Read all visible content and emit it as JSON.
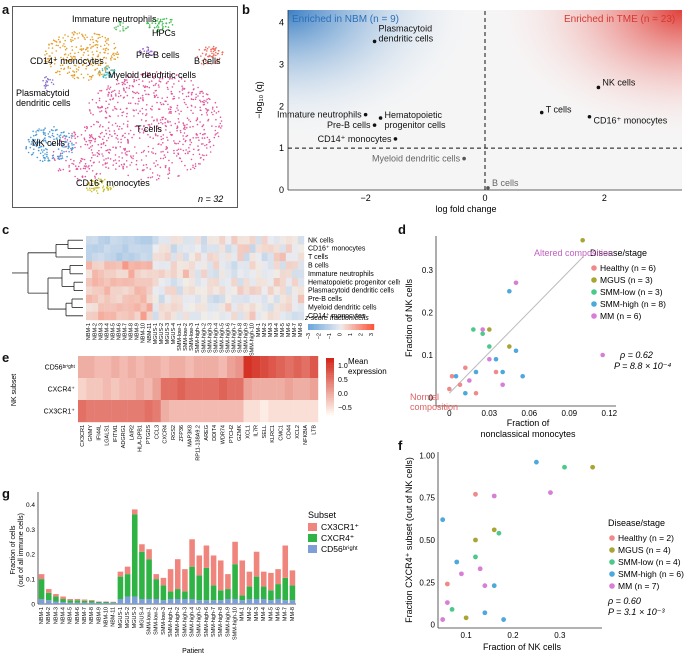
{
  "figure": {
    "panel_labels": {
      "a": "a",
      "b": "b",
      "c": "c",
      "d": "d",
      "e": "e",
      "f": "f",
      "g": "g"
    }
  },
  "panel_a": {
    "n_label": "n = 32",
    "cluster_labels": {
      "immature_neutrophils": "Immature neutrophils",
      "hpcs": "HPCs",
      "cd14_monocytes": "CD14⁺ monocytes",
      "pre_b_cells": "Pre-B cells",
      "b_cells": "B cells",
      "myeloid_dc": "Myeloid dendritic cells",
      "pdc_line1": "Plasmacytoid",
      "pdc_line2": "dendritic cells",
      "t_cells": "T cells",
      "nk_cells": "NK cells",
      "cd16_monocytes": "CD16⁺ monocytes"
    },
    "colors": {
      "t_cells": "#e2569c",
      "cd14_monocytes": "#e3a12c",
      "nk_cells": "#4a9ad8",
      "cd16_monocytes": "#c8c230",
      "b_cells": "#ef6b5e",
      "hpcs": "#3dbb4d",
      "immature_neutrophils": "#5fc26c",
      "pre_b_cells": "#9b6ad0",
      "myeloid_dc": "#36c0c8",
      "pdc": "#8a74cc"
    }
  },
  "panel_b": {
    "left_title": "Enriched in NBM (n = 9)",
    "right_title": "Enriched in TME (n = 23)",
    "left_color": "#3b7fc4",
    "right_color": "#e0403a",
    "xlabel": "log fold change",
    "ylabel": "−log₁₀ (q)",
    "xticks": [
      "−2",
      "0",
      "2"
    ],
    "yticks": [
      "0",
      "1",
      "2",
      "3",
      "4"
    ],
    "points": [
      {
        "label1": "Plasmacytoid",
        "label2": "dendritic cells",
        "x": -1.85,
        "y": 3.55
      },
      {
        "label1": "Immature neutrophils",
        "label2": "",
        "x": -2.0,
        "y": 1.8
      },
      {
        "label1": "Hematopoietic",
        "label2": "progenitor cells",
        "x": -1.75,
        "y": 1.72
      },
      {
        "label1": "Pre-B cells",
        "label2": "",
        "x": -1.85,
        "y": 1.55
      },
      {
        "label1": "CD14⁺ monocytes",
        "label2": "",
        "x": -1.5,
        "y": 1.22
      },
      {
        "label1": "Myeloid dendritic cells",
        "label2": "",
        "x": -0.35,
        "y": 0.75
      },
      {
        "label1": "B cells",
        "label2": "",
        "x": 0.05,
        "y": 0.05
      },
      {
        "label1": "NK cells",
        "label2": "",
        "x": 1.9,
        "y": 2.45
      },
      {
        "label1": "T cells",
        "label2": "",
        "x": 0.95,
        "y": 1.85
      },
      {
        "label1": "CD16⁺ monocytes",
        "label2": "",
        "x": 1.75,
        "y": 1.75
      }
    ]
  },
  "panel_c": {
    "rows": [
      "NK cells",
      "CD16⁺ monocytes",
      "T cells",
      "B cells",
      "Immature neutrophils",
      "Hematopoietic progenitor cells",
      "Plasmacytoid dendritic cells",
      "Pre-B cells",
      "Myeloid dendritic cells",
      "CD14⁺ monocytes"
    ],
    "columns": [
      "NBM-1",
      "NBM-2",
      "NBM-3",
      "NBM-4",
      "NBM-5",
      "NBM-6",
      "NBM-7",
      "NBM-8",
      "NBM-9",
      "NBM-10",
      "NBM-11",
      "MGUS-1",
      "MGUS-2",
      "MGUS-3",
      "MGUS-4",
      "SMM-low-1",
      "SMM-low-2",
      "SMM-low-3",
      "SMM-high-1",
      "SMM-high-2",
      "SMM-high-3",
      "SMM-high-4",
      "SMM-high-5",
      "SMM-high-6",
      "SMM-high-7",
      "SMM-high-8",
      "SMM-high-9",
      "SMM-high-10",
      "MM-1",
      "MM-2",
      "MM-3",
      "MM-4",
      "MM-5",
      "MM-6",
      "MM-7",
      "MM-8"
    ],
    "legend_title": "z-score fraction cells",
    "legend_ticks": [
      "−3",
      "−2",
      "−1",
      "0",
      "1",
      "2",
      "3"
    ]
  },
  "panel_d": {
    "xlabel1": "Fraction of",
    "xlabel2": "nonclassical monocytes",
    "ylabel": "Fraction of NK cells",
    "xticks": [
      "0",
      "0.03",
      "0.06",
      "0.09",
      "0.12"
    ],
    "yticks": [
      "0",
      "0.1",
      "0.2",
      "0.3"
    ],
    "legend_title": "Disease/stage",
    "legend": [
      {
        "label": "Healthy (n = 6)",
        "color": "#f08a8a"
      },
      {
        "label": "MGUS (n = 3)",
        "color": "#a8a534"
      },
      {
        "label": "SMM-low (n = 3)",
        "color": "#4cc98a"
      },
      {
        "label": "SMM-high (n = 8)",
        "color": "#4da8db"
      },
      {
        "label": "MM (n = 6)",
        "color": "#d77ed6"
      }
    ],
    "altered": "Altered composition",
    "normal1": "Normal",
    "normal2": "composition",
    "rho": "ρ = 0.62",
    "pval": "P = 8.8 × 10⁻⁴"
  },
  "panel_e": {
    "rows": [
      "CD56ᵇʳⁱᵍʰᵗ",
      "CXCR4⁺",
      "CX3CR1⁺"
    ],
    "ytitle": "NK subset",
    "columns": [
      "CX3CR1",
      "GNMY",
      "IFI44L",
      "LGALS1",
      "IFITM1",
      "ADGRG1",
      "LAIR2",
      "HLA-DPB1",
      "PTGDS",
      "CCL3",
      "CXCR4",
      "RGS2",
      "ZFP36",
      "MAP3K8",
      "RP11-138A9.2",
      "AREG",
      "DDIT4",
      "WDR74",
      "PTCH2",
      "GZMK",
      "XCL1",
      "IL7R",
      "SELL",
      "KLRC1",
      "CMC1",
      "CD44",
      "XCL2",
      "NFKBIA",
      "LTB"
    ],
    "legend_title1": "Mean",
    "legend_title2": "expression",
    "legend_ticks": [
      "1.0",
      "0.5",
      "0.0",
      "−0.5"
    ]
  },
  "panel_f": {
    "xlabel": "Fraction of NK cells",
    "ylabel": "Fraction CXCR4⁺ subset (out of NK cells)",
    "xticks": [
      "0.1",
      "0.2",
      "0.3"
    ],
    "yticks": [
      "0",
      "0.25",
      "0.50",
      "0.75",
      "1.00"
    ],
    "legend_title": "Disease/stage",
    "legend": [
      {
        "label": "Healthy (n = 2)",
        "color": "#f08a8a"
      },
      {
        "label": "MGUS (n = 4)",
        "color": "#a8a534"
      },
      {
        "label": "SMM-low (n = 4)",
        "color": "#4cc98a"
      },
      {
        "label": "SMM-high (n = 6)",
        "color": "#4da8db"
      },
      {
        "label": "MM (n = 7)",
        "color": "#d77ed6"
      }
    ],
    "rho": "ρ = 0.60",
    "pval": "P = 3.1 × 10⁻³"
  },
  "panel_g": {
    "ylabel1": "Fraction of cells",
    "ylabel2": "(out of all immune cells)",
    "xlabel": "Patient",
    "yticks": [
      "0",
      "0.1",
      "0.2",
      "0.3",
      "0.4"
    ],
    "legend_title": "Subset",
    "legend": [
      {
        "label": "CX3CR1⁺",
        "color": "#f0857d"
      },
      {
        "label": "CXCR4⁺",
        "color": "#2fb344"
      },
      {
        "label": "CD56ᵇʳⁱᵍʰᵗ",
        "color": "#7f9ed8"
      }
    ],
    "patients": [
      "NBM-1",
      "NBM-2",
      "NBM-3",
      "NBM-4",
      "NBM-5",
      "NBM-6",
      "NBM-7",
      "NBM-8",
      "NBM-9",
      "NBM-10",
      "NBM-11",
      "MGUS-1",
      "MGUS-2",
      "MGUS-3",
      "MGUS-4",
      "SMM-low-1",
      "SMM-low-2",
      "SMM-low-3",
      "SMM-high-1",
      "SMM-high-2",
      "SMM-high-3",
      "SMM-high-4",
      "SMM-high-5",
      "SMM-high-6",
      "SMM-high-7",
      "SMM-high-8",
      "SMM-high-9",
      "SMM-high-10",
      "MM-1",
      "MM-2",
      "MM-3",
      "MM-4",
      "MM-5",
      "MM-6",
      "MM-7",
      "MM-8"
    ]
  },
  "chart_data": [
    {
      "type": "scatter",
      "title": "Panel b",
      "xlabel": "log fold change",
      "ylabel": "−log10 (q)",
      "xlim": [
        -3.3,
        3.3
      ],
      "ylim": [
        0,
        4.3
      ],
      "x": [
        -1.85,
        -2.0,
        -1.75,
        -1.85,
        -1.5,
        -0.35,
        0.05,
        1.9,
        0.95,
        1.75
      ],
      "y": [
        3.55,
        1.8,
        1.72,
        1.55,
        1.22,
        0.75,
        0.05,
        2.45,
        1.85,
        1.75
      ]
    },
    {
      "type": "scatter",
      "title": "Panel d",
      "xlabel": "Fraction of nonclassical monocytes",
      "ylabel": "Fraction of NK cells",
      "xlim": [
        -0.01,
        0.125
      ],
      "ylim": [
        -0.02,
        0.38
      ],
      "series": [
        {
          "name": "Healthy",
          "x": [
            0.0,
            0.002,
            0.008,
            0.012,
            0.02,
            0.035
          ],
          "y": [
            0.02,
            0.05,
            0.03,
            0.07,
            0.01,
            0.06
          ]
        },
        {
          "name": "MGUS",
          "x": [
            0.1,
            0.03,
            0.045
          ],
          "y": [
            0.37,
            0.16,
            0.12
          ]
        },
        {
          "name": "SMM-low",
          "x": [
            0.03,
            0.018,
            0.025
          ],
          "y": [
            0.12,
            0.16,
            0.15
          ]
        },
        {
          "name": "SMM-high",
          "x": [
            0.045,
            0.05,
            0.035,
            0.04,
            0.02,
            0.005,
            0.055,
            0.012
          ],
          "y": [
            0.25,
            0.11,
            0.09,
            0.06,
            0.06,
            0.05,
            0.05,
            0.01
          ]
        },
        {
          "name": "MM",
          "x": [
            0.05,
            0.025,
            0.115,
            0.04,
            0.015,
            0.03
          ],
          "y": [
            0.27,
            0.16,
            0.1,
            0.03,
            0.04,
            0.09
          ]
        }
      ]
    },
    {
      "type": "scatter",
      "title": "Panel f",
      "xlabel": "Fraction of NK cells",
      "ylabel": "Fraction CXCR4+ subset (out of NK cells)",
      "xlim": [
        0.04,
        0.39
      ],
      "ylim": [
        -0.02,
        1.02
      ],
      "series": [
        {
          "name": "Healthy",
          "x": [
            0.06,
            0.12
          ],
          "y": [
            0.24,
            0.77
          ]
        },
        {
          "name": "MGUS",
          "x": [
            0.37,
            0.12,
            0.1,
            0.16
          ],
          "y": [
            0.93,
            0.5,
            0.04,
            0.56
          ]
        },
        {
          "name": "SMM-low",
          "x": [
            0.12,
            0.31,
            0.17,
            0.07
          ],
          "y": [
            0.4,
            0.93,
            0.54,
            0.09
          ]
        },
        {
          "name": "SMM-high",
          "x": [
            0.25,
            0.05,
            0.16,
            0.14,
            0.08,
            0.18
          ],
          "y": [
            0.96,
            0.62,
            0.23,
            0.07,
            0.37,
            0.03
          ]
        },
        {
          "name": "MM",
          "x": [
            0.16,
            0.28,
            0.06,
            0.13,
            0.09,
            0.05,
            0.14
          ],
          "y": [
            0.76,
            0.78,
            0.13,
            0.33,
            0.3,
            0.03,
            0.23
          ]
        }
      ]
    },
    {
      "type": "bar",
      "title": "Panel g",
      "stacked": true,
      "xlabel": "Patient",
      "ylabel": "Fraction of cells (out of all immune cells)",
      "ylim": [
        0,
        0.45
      ],
      "categories": [
        "NBM-1",
        "NBM-2",
        "NBM-3",
        "NBM-4",
        "NBM-5",
        "NBM-6",
        "NBM-7",
        "NBM-8",
        "NBM-9",
        "NBM-10",
        "NBM-11",
        "MGUS-1",
        "MGUS-2",
        "MGUS-3",
        "MGUS-4",
        "SMM-low-1",
        "SMM-low-2",
        "SMM-low-3",
        "SMM-high-1",
        "SMM-high-2",
        "SMM-high-3",
        "SMM-high-4",
        "SMM-high-5",
        "SMM-high-6",
        "SMM-high-7",
        "SMM-high-8",
        "SMM-high-9",
        "SMM-high-10",
        "MM-1",
        "MM-2",
        "MM-3",
        "MM-4",
        "MM-5",
        "MM-6",
        "MM-7",
        "MM-8"
      ],
      "series": [
        {
          "name": "CD56bright",
          "values": [
            0.02,
            0.015,
            0.01,
            0.008,
            0.005,
            0.005,
            0.005,
            0.005,
            0.004,
            0.004,
            0.004,
            0.02,
            0.03,
            0.03,
            0.02,
            0.02,
            0.02,
            0.015,
            0.02,
            0.02,
            0.02,
            0.02,
            0.015,
            0.015,
            0.015,
            0.015,
            0.02,
            0.02,
            0.015,
            0.02,
            0.02,
            0.02,
            0.015,
            0.02,
            0.015,
            0.015
          ]
        },
        {
          "name": "CXCR4+",
          "values": [
            0.08,
            0.03,
            0.02,
            0.012,
            0.01,
            0.01,
            0.008,
            0.008,
            0.004,
            0.004,
            0.003,
            0.09,
            0.09,
            0.33,
            0.19,
            0.16,
            0.08,
            0.06,
            0.03,
            0.04,
            0.03,
            0.13,
            0.1,
            0.13,
            0.06,
            0.04,
            0.04,
            0.14,
            0.02,
            0.05,
            0.09,
            0.05,
            0.04,
            0.06,
            0.09,
            0.06
          ]
        },
        {
          "name": "CX3CR1+",
          "values": [
            0.02,
            0.015,
            0.01,
            0.01,
            0.005,
            0.005,
            0.005,
            0.003,
            0.002,
            0.002,
            0.002,
            0.02,
            0.03,
            0.02,
            0.03,
            0.04,
            0.02,
            0.03,
            0.09,
            0.12,
            0.09,
            0.11,
            0.08,
            0.09,
            0.12,
            0.12,
            0.06,
            0.09,
            0.14,
            0.06,
            0.1,
            0.06,
            0.07,
            0.06,
            0.13,
            0.06
          ]
        }
      ]
    }
  ]
}
